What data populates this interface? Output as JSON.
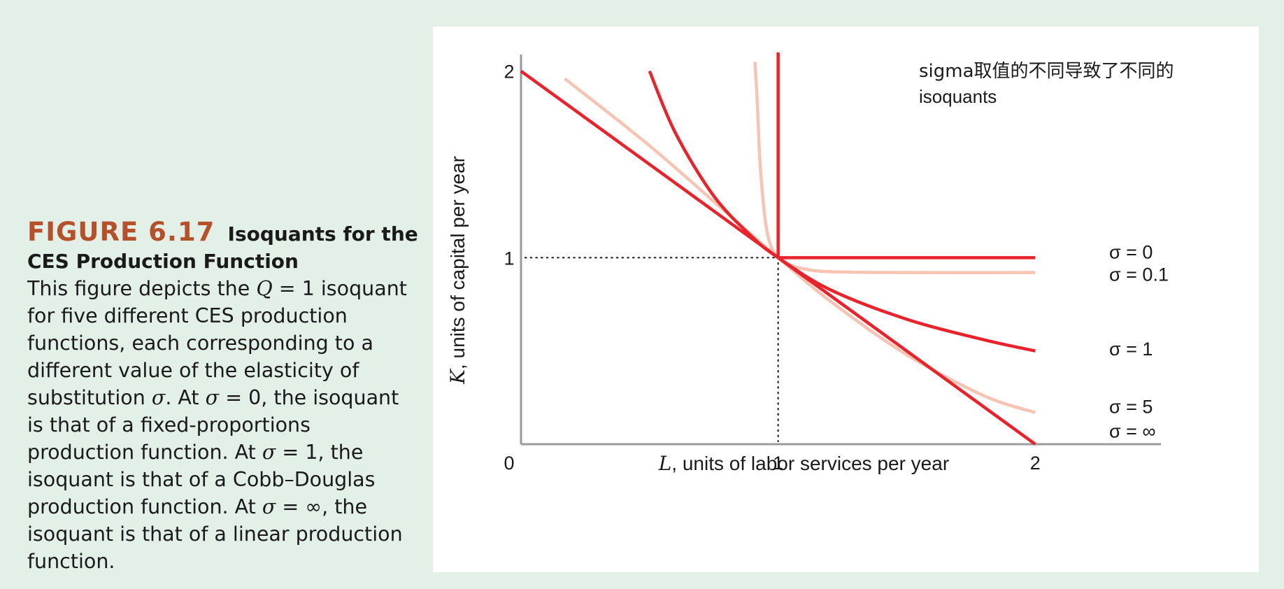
{
  "caption": {
    "label": "FIGURE 6.17",
    "title": "Isoquants for the CES Production Function",
    "line1_a": "This figure depicts the ",
    "line1_q": "Q",
    "line1_eq": " = ",
    "line1_b": "1 isoquant",
    "body_lines": [
      "for five different CES production",
      "functions, each corresponding to a",
      "different value of the elasticity of"
    ],
    "sub_a": "substitution ",
    "sigma": "σ",
    "sub_b": ". At ",
    "sub_c": " = 0, the isoquant",
    "line_fixed": "is that of a fixed-proportions",
    "prod_a": "production function. At ",
    "prod_b": " = 1, the",
    "line_cobb": "isoquant is that of a Cobb–Douglas",
    "lin_a": "production function. At ",
    "lin_b": " = ∞, the",
    "line_linear": "isoquant is that of a linear production",
    "line_end": "function."
  },
  "chart_data": {
    "type": "line",
    "x_label_var": "L",
    "xlabel": ", units of labor services per year",
    "y_label_var": "K",
    "ylabel": ", units of capital per year",
    "xlim": [
      0,
      2.35
    ],
    "ylim": [
      0,
      2.1
    ],
    "x_ticks": [
      "0",
      "1",
      "2"
    ],
    "y_ticks": [
      "1",
      "2"
    ],
    "annotation_line1": "sigma取值的不同导致了不同的",
    "annotation_line2": "isoquants",
    "reference_point": [
      1,
      1
    ],
    "series": [
      {
        "name": "σ = ∞",
        "color": "#e8232b",
        "x": [
          0,
          2
        ],
        "y": [
          2,
          0
        ]
      },
      {
        "name": "σ = 5",
        "color": "#f7c4b3",
        "x": [
          0.17,
          0.5,
          0.8,
          1.0,
          1.2,
          1.5,
          1.8,
          2.0
        ],
        "y": [
          1.96,
          1.6,
          1.24,
          1.0,
          0.77,
          0.48,
          0.26,
          0.17
        ]
      },
      {
        "name": "σ = 1",
        "color": "#e8232b",
        "x": [
          0.5,
          0.6,
          0.75,
          0.9,
          1.0,
          1.2,
          1.5,
          1.8,
          2.0
        ],
        "y": [
          2.0,
          1.67,
          1.33,
          1.11,
          1.0,
          0.83,
          0.67,
          0.56,
          0.5
        ]
      },
      {
        "name": "σ = 0.1",
        "color": "#f7c4b3",
        "x": [
          0.91,
          0.92,
          0.93,
          0.95,
          0.97,
          1.0,
          1.05,
          1.1,
          1.2,
          1.5,
          2.0
        ],
        "y": [
          2.05,
          1.8,
          1.5,
          1.2,
          1.07,
          1.0,
          0.96,
          0.94,
          0.925,
          0.92,
          0.92
        ]
      },
      {
        "name": "σ = 0",
        "color": "#e8232b",
        "x": [
          1.0,
          1.0,
          2.0
        ],
        "y": [
          2.1,
          1.0,
          1.0
        ]
      }
    ],
    "labels": {
      "s0": "σ = 0",
      "s01": "σ = 0.1",
      "s1": "σ = 1",
      "s5": "σ = 5",
      "sinf": "σ = ∞"
    }
  }
}
